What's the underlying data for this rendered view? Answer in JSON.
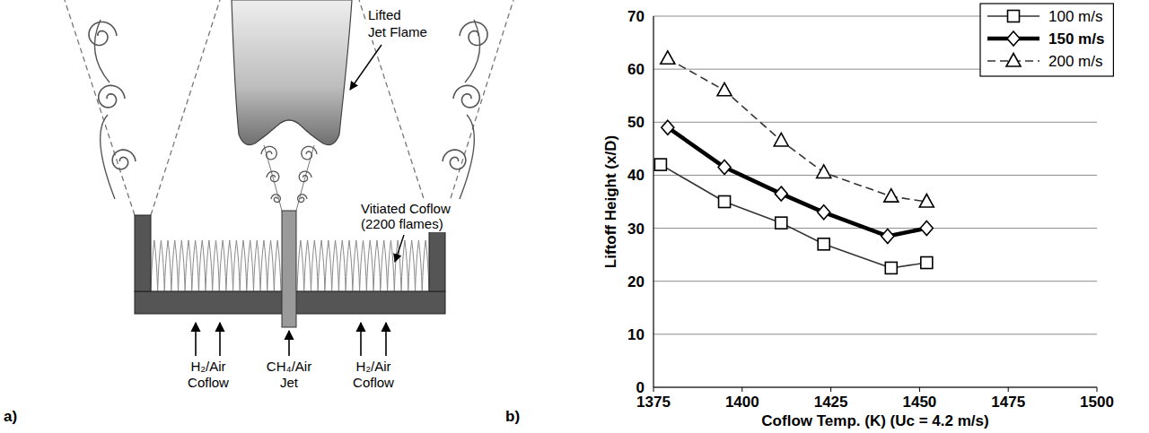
{
  "diagram": {
    "panel_label": "a)",
    "flame_label": [
      "Lifted",
      "Jet Flame"
    ],
    "coflow_label": [
      "Vitiated Coflow",
      "(2200 flames)"
    ],
    "left_inlet": [
      "H₂/Air",
      "Coflow"
    ],
    "jet_inlet": [
      "CH₄/Air",
      "Jet"
    ],
    "right_inlet": [
      "H₂/Air",
      "Coflow"
    ]
  },
  "chart_data": {
    "type": "line",
    "annotations": [
      "b)"
    ],
    "x_label": "Coflow Temp. (K) (Uc = 4.2 m/s)",
    "y_label": "Liftoff Height (x/D)",
    "xlim": [
      1375,
      1500
    ],
    "xticks": [
      1375,
      1400,
      1425,
      1450,
      1475,
      1500
    ],
    "ylim": [
      0,
      70
    ],
    "yticks": [
      0,
      10,
      20,
      30,
      40,
      50,
      60,
      70
    ],
    "grid": true,
    "legend": "upper right",
    "series": [
      {
        "name": "100 m/s",
        "color": "#333333",
        "marker": "square",
        "line_style": "solid",
        "x": [
          1377,
          1395,
          1411,
          1423,
          1442,
          1452
        ],
        "values": [
          42,
          35,
          31,
          27,
          22.5,
          23.5
        ]
      },
      {
        "name": "150 m/s",
        "color": "#000000",
        "marker": "diamond",
        "line_style": "thick",
        "x": [
          1379,
          1395,
          1411,
          1423,
          1441,
          1452
        ],
        "values": [
          49,
          41.5,
          36.5,
          33,
          28.5,
          30
        ]
      },
      {
        "name": "200 m/s",
        "color": "#333333",
        "marker": "triangle",
        "line_style": "dashed",
        "x": [
          1379,
          1395,
          1411,
          1423,
          1442,
          1452
        ],
        "values": [
          62,
          56,
          46.5,
          40.5,
          36,
          35
        ]
      }
    ]
  }
}
